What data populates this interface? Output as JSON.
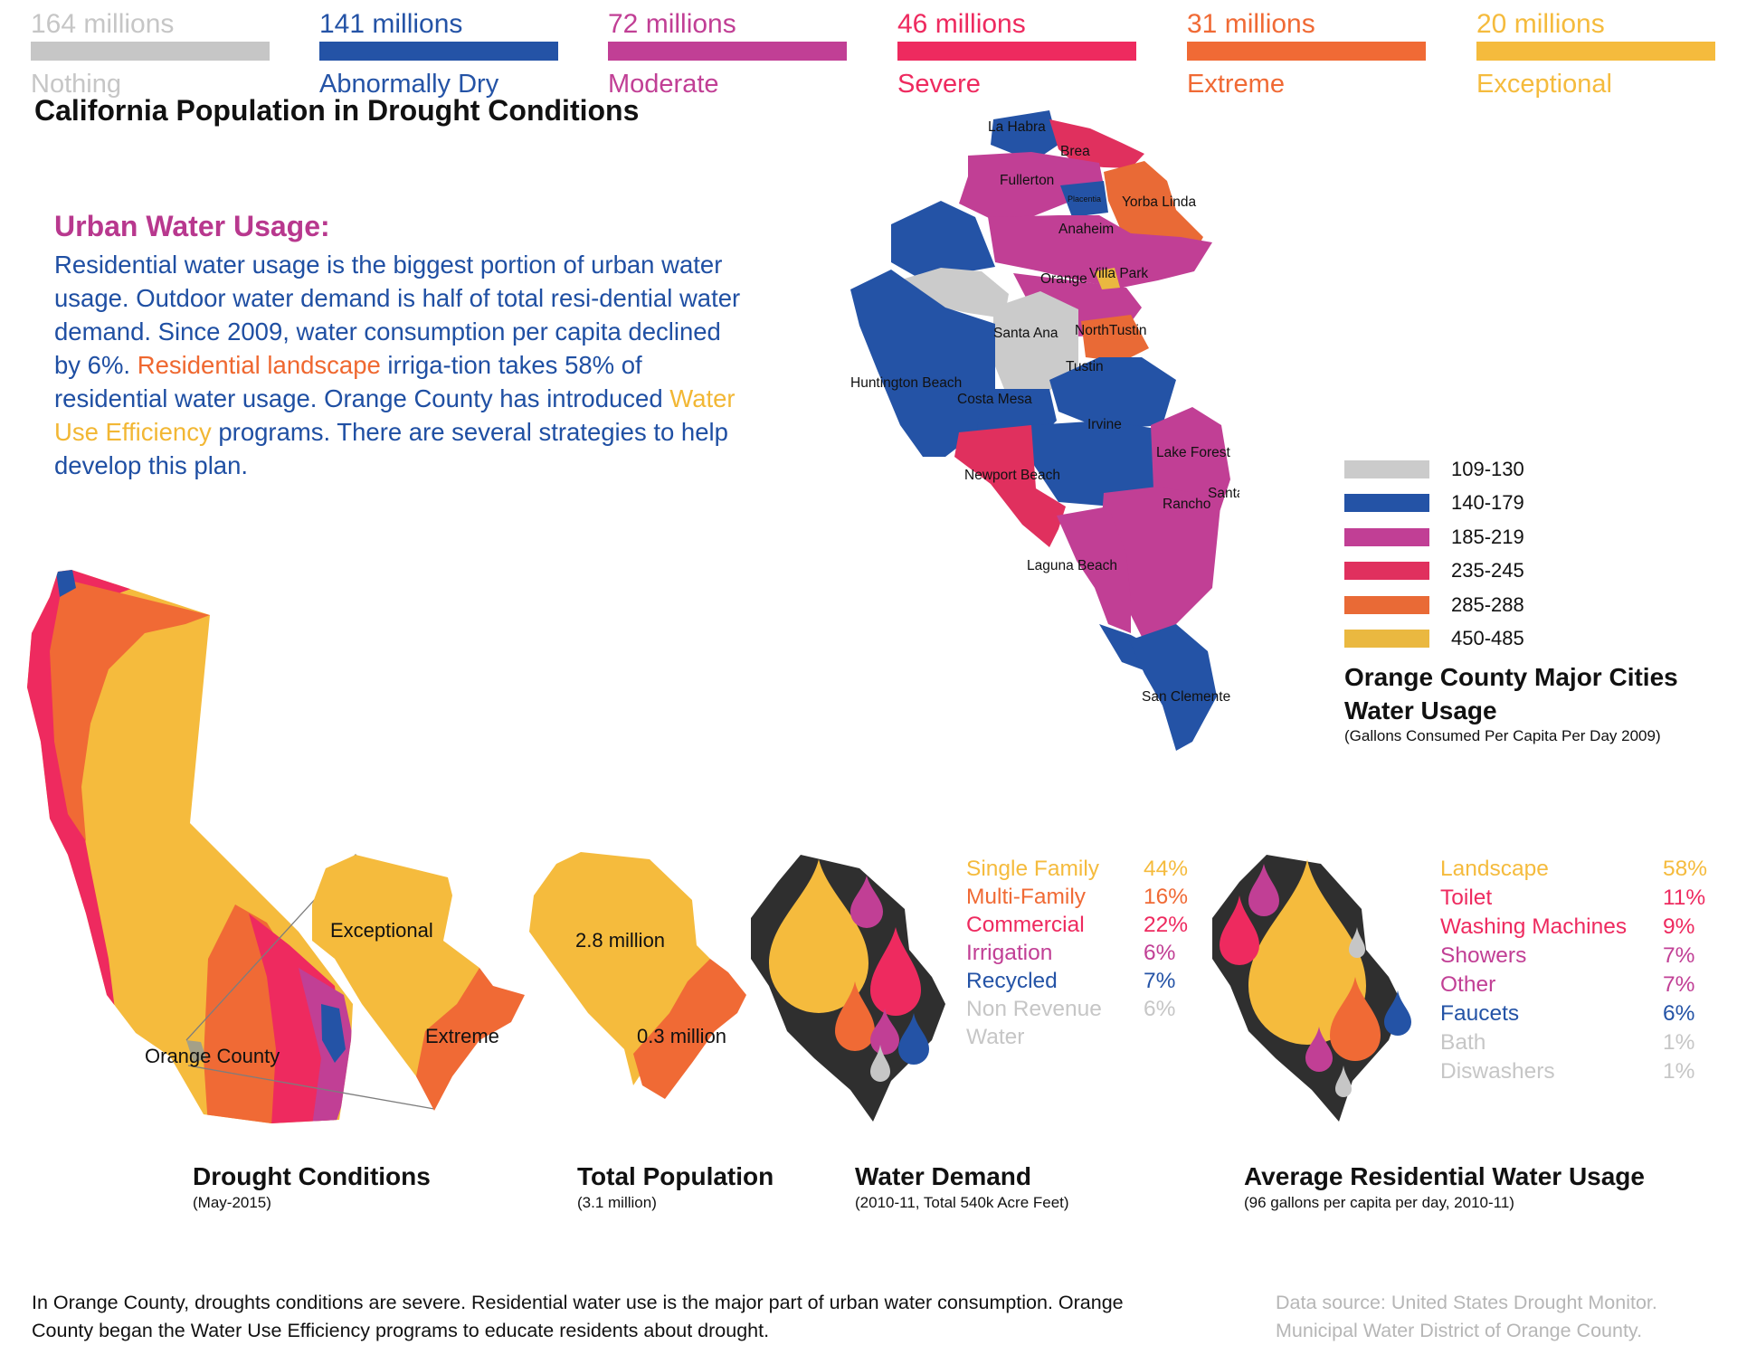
{
  "drought_legend": [
    {
      "value": "164 millions",
      "label": "Nothing",
      "color": "#c6c6c6"
    },
    {
      "value": "141 millions",
      "label": "Abnormally Dry",
      "color": "#2453a6"
    },
    {
      "value": "72 millions",
      "label": "Moderate",
      "color": "#c13f95"
    },
    {
      "value": "46 millions",
      "label": "Severe",
      "color": "#ee2a5f"
    },
    {
      "value": "31 millions",
      "label": "Extreme",
      "color": "#f06a35"
    },
    {
      "value": "20 millions",
      "label": "Exceptional",
      "color": "#f5bb3d"
    }
  ],
  "title": "California Population in Drought Conditions",
  "urban": {
    "heading": "Urban Water Usage:",
    "p1": "Residential water usage is the biggest portion of urban water usage. Outdoor water demand is half of total resi-dential water demand. Since 2009, water consumption per capita declined by 6%. ",
    "hl1": "Residential landscape",
    "p2": " irriga-tion takes 58% of residential water usage. Orange County has introduced ",
    "hl2": "Water Use Efficiency",
    "p3": " programs. There are several strategies to help develop this plan."
  },
  "oc_map": {
    "cities": [
      "La Habra",
      "Brea",
      "Fullerton",
      "Placentia",
      "Yorba Linda",
      "Anaheim",
      "Orange",
      "Villa Park",
      "Santa Ana",
      "NorthTustin",
      "Tustin",
      "Huntington Beach",
      "Costa Mesa",
      "Irvine",
      "Lake Forest",
      "Newport Beach",
      "Santa Margarita",
      "Rancho",
      "Laguna Beach",
      "San Clemente"
    ],
    "legend": [
      {
        "range": "109-130",
        "color": "#cbcbcb"
      },
      {
        "range": "140-179",
        "color": "#2453a6"
      },
      {
        "range": "185-219",
        "color": "#c13f95"
      },
      {
        "range": "235-245",
        "color": "#e0305e"
      },
      {
        "range": "285-288",
        "color": "#e96a36"
      },
      {
        "range": "450-485",
        "color": "#eab840"
      }
    ],
    "title_line1": "Orange County Major Cities",
    "title_line2": "Water Usage",
    "subtitle": "(Gallons Consumed Per Capita Per Day 2009)"
  },
  "ca_map": {
    "oc_label": "Orange County",
    "zoom_exceptional": "Exceptional",
    "zoom_extreme": "Extreme"
  },
  "population_map": {
    "a": "2.8 million",
    "b": "0.3 million"
  },
  "water_demand": [
    {
      "label": "Single Family",
      "pct": "44%",
      "color": "#f5bb3d"
    },
    {
      "label": "Multi-Family",
      "pct": "16%",
      "color": "#f06a35"
    },
    {
      "label": "Commercial",
      "pct": "22%",
      "color": "#ee2a5f"
    },
    {
      "label": "Irrigation",
      "pct": "6%",
      "color": "#c13f95"
    },
    {
      "label": "Recycled",
      "pct": "7%",
      "color": "#2453a6"
    },
    {
      "label": "Non Revenue",
      "pct": "6%",
      "color": "#c6c6c6"
    },
    {
      "label": "Water",
      "pct": "",
      "color": "#c6c6c6"
    }
  ],
  "residential_usage": [
    {
      "label": "Landscape",
      "pct": "58%",
      "color": "#f5bb3d"
    },
    {
      "label": "Toilet",
      "pct": "11%",
      "color": "#ee2a5f"
    },
    {
      "label": "Washing Machines",
      "pct": "9%",
      "color": "#ee2a5f"
    },
    {
      "label": "Showers",
      "pct": "7%",
      "color": "#c13f95"
    },
    {
      "label": "Other",
      "pct": "7%",
      "color": "#c13f95"
    },
    {
      "label": "Faucets",
      "pct": "6%",
      "color": "#2453a6"
    },
    {
      "label": "Bath",
      "pct": "1%",
      "color": "#c6c6c6"
    },
    {
      "label": "Diswashers",
      "pct": "1%",
      "color": "#c6c6c6"
    }
  ],
  "captions": {
    "drought_title": "Drought Conditions",
    "drought_sub": "(May-2015)",
    "pop_title": "Total Population",
    "pop_sub": "(3.1 million)",
    "demand_title": "Water Demand",
    "demand_sub": "(2010-11, Total 540k Acre Feet)",
    "usage_title": "Average Residential Water Usage",
    "usage_sub": "(96 gallons per capita per day, 2010-11)"
  },
  "footer": {
    "summary": "In Orange County, droughts conditions are severe. Residential water use is the major part of urban water consumption. Orange County began the Water Use Efficiency programs to educate residents about drought.",
    "source_line1": "Data source: United States Drought Monitor.",
    "source_line2": "Municipal Water District of Orange County."
  }
}
